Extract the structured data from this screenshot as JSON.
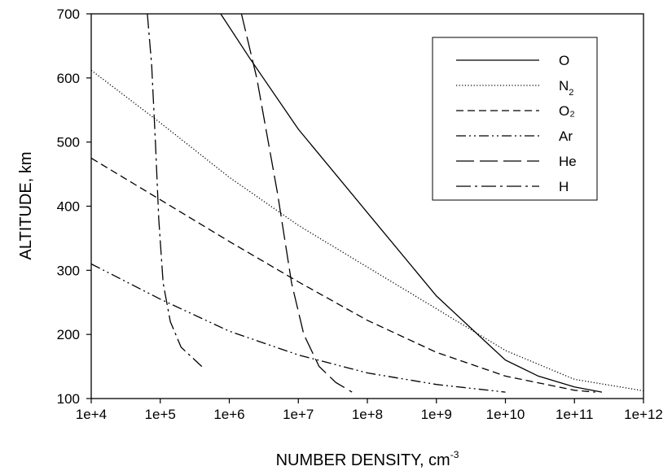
{
  "chart_data": {
    "type": "line",
    "title": "",
    "xlabel": "NUMBER DENSITY, cm",
    "xlabel_superscript": "-3",
    "ylabel": "ALTITUDE, km",
    "x_scale": "log",
    "xlim": [
      10000,
      1000000000000
    ],
    "ylim": [
      100,
      700
    ],
    "x_ticks": [
      "1e+4",
      "1e+5",
      "1e+6",
      "1e+7",
      "1e+8",
      "1e+9",
      "1e+10",
      "1e+11",
      "1e+12"
    ],
    "y_ticks": [
      "100",
      "200",
      "300",
      "400",
      "500",
      "600",
      "700"
    ],
    "grid": false,
    "legend_position": "top-right",
    "series": [
      {
        "name": "O",
        "dash": "solid",
        "x": [
          750000,
          2000000,
          10000000,
          100000000,
          1000000000,
          5000000000,
          10000000000,
          30000000000,
          100000000000,
          250000000000
        ],
        "y": [
          700,
          630,
          520,
          390,
          260,
          190,
          160,
          135,
          118,
          110
        ]
      },
      {
        "name": "N",
        "name_subscript": "2",
        "dash": "dotted",
        "x": [
          10000,
          100000,
          1000000,
          10000000,
          100000000,
          1000000000,
          10000000000,
          100000000000,
          1000000000000
        ],
        "y": [
          612,
          530,
          445,
          370,
          305,
          240,
          175,
          130,
          112
        ]
      },
      {
        "name": "O₂",
        "dash": "short-dash",
        "x": [
          10000,
          100000,
          1000000,
          10000000,
          100000000,
          1000000000,
          10000000000,
          100000000000,
          200000000000
        ],
        "y": [
          475,
          410,
          345,
          282,
          222,
          172,
          135,
          113,
          110
        ]
      },
      {
        "name": "Ar",
        "dash": "dash-dot-dot",
        "x": [
          10000,
          100000,
          1000000,
          10000000,
          100000000,
          1000000000,
          10000000000
        ],
        "y": [
          310,
          255,
          205,
          168,
          140,
          122,
          110
        ]
      },
      {
        "name": "He",
        "dash": "long-dash",
        "x": [
          1500000,
          2500000,
          5000000,
          8000000,
          12000000,
          20000000,
          35000000,
          60000000
        ],
        "y": [
          700,
          600,
          420,
          280,
          200,
          150,
          125,
          110
        ]
      },
      {
        "name": "H",
        "dash": "dash-dot",
        "x": [
          65000,
          75000,
          85000,
          95000,
          110000,
          140000,
          200000,
          400000
        ],
        "y": [
          700,
          620,
          500,
          380,
          280,
          220,
          180,
          150
        ]
      }
    ]
  }
}
